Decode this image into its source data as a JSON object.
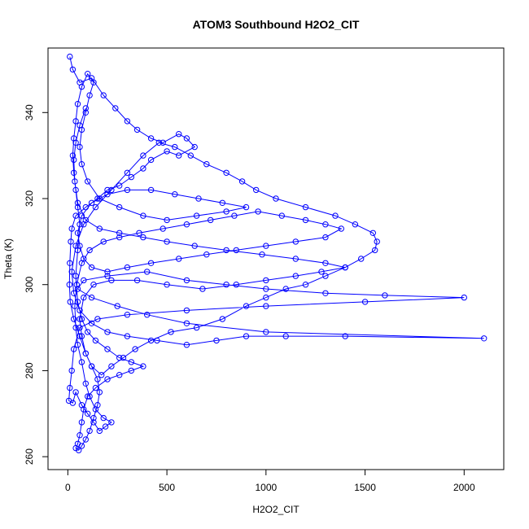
{
  "chart_data": {
    "type": "scatter",
    "title": "ATOM3 Southbound H2O2_CIT",
    "xlabel": "H2O2_CIT",
    "ylabel": "Theta (K)",
    "xlim": [
      -100,
      2200
    ],
    "ylim": [
      257,
      355
    ],
    "x_ticks": [
      0,
      500,
      1000,
      1500,
      2000
    ],
    "y_ticks": [
      260,
      280,
      300,
      320,
      340
    ],
    "grid": false,
    "legend": "none",
    "point_style": "open circles connected by lines",
    "series_color": "#0000ff",
    "series": [
      {
        "points": [
          [
            10,
            353
          ],
          [
            25,
            350
          ],
          [
            60,
            347
          ],
          [
            120,
            348
          ],
          [
            180,
            344
          ],
          [
            240,
            341
          ],
          [
            300,
            338
          ],
          [
            350,
            336
          ],
          [
            420,
            334
          ],
          [
            480,
            333
          ],
          [
            560,
            335
          ],
          [
            600,
            334
          ],
          [
            640,
            332
          ],
          [
            560,
            330
          ],
          [
            500,
            331
          ],
          [
            420,
            329
          ],
          [
            380,
            327
          ],
          [
            320,
            325
          ],
          [
            260,
            323
          ],
          [
            200,
            322
          ],
          [
            150,
            320
          ],
          [
            90,
            318
          ],
          [
            40,
            316
          ],
          [
            20,
            313
          ],
          [
            15,
            310
          ],
          [
            10,
            305
          ],
          [
            8,
            300
          ],
          [
            12,
            296
          ],
          [
            30,
            292
          ],
          [
            60,
            288
          ],
          [
            90,
            284
          ],
          [
            120,
            281
          ],
          [
            170,
            279
          ],
          [
            220,
            281
          ],
          [
            280,
            283
          ],
          [
            340,
            285
          ],
          [
            420,
            287
          ],
          [
            520,
            289
          ],
          [
            650,
            290
          ],
          [
            780,
            292
          ],
          [
            900,
            295
          ],
          [
            1000,
            297
          ],
          [
            1100,
            299
          ],
          [
            1200,
            300
          ],
          [
            1300,
            302
          ],
          [
            1400,
            304
          ],
          [
            1480,
            306
          ],
          [
            1550,
            308
          ],
          [
            1560,
            310
          ],
          [
            1540,
            312
          ],
          [
            1450,
            314
          ],
          [
            1350,
            316
          ],
          [
            1200,
            318
          ],
          [
            1050,
            320
          ],
          [
            950,
            322
          ],
          [
            880,
            324
          ],
          [
            800,
            326
          ],
          [
            700,
            328
          ],
          [
            620,
            330
          ],
          [
            540,
            332
          ],
          [
            460,
            333
          ],
          [
            380,
            330
          ],
          [
            300,
            326
          ],
          [
            220,
            322
          ],
          [
            140,
            318
          ],
          [
            80,
            314
          ],
          [
            40,
            309
          ],
          [
            20,
            303
          ],
          [
            30,
            298
          ],
          [
            60,
            294
          ],
          [
            120,
            291
          ],
          [
            200,
            289
          ],
          [
            300,
            288
          ],
          [
            450,
            287
          ],
          [
            600,
            286
          ],
          [
            750,
            287
          ],
          [
            900,
            288
          ],
          [
            1100,
            288
          ],
          [
            1400,
            288
          ],
          [
            2100,
            287.5
          ],
          [
            1000,
            289
          ],
          [
            600,
            291
          ],
          [
            400,
            293
          ],
          [
            250,
            295
          ],
          [
            120,
            297
          ],
          [
            50,
            299
          ],
          [
            80,
            301
          ],
          [
            200,
            302
          ],
          [
            400,
            303
          ],
          [
            600,
            301
          ],
          [
            800,
            300
          ],
          [
            1000,
            299
          ],
          [
            1300,
            298
          ],
          [
            1600,
            297.5
          ],
          [
            2000,
            297
          ],
          [
            1500,
            296
          ],
          [
            1000,
            295
          ],
          [
            600,
            294
          ],
          [
            300,
            293
          ],
          [
            150,
            292
          ],
          [
            60,
            290
          ],
          [
            30,
            285
          ],
          [
            20,
            280
          ],
          [
            10,
            276
          ],
          [
            5,
            273
          ],
          [
            25,
            272.5
          ],
          [
            40,
            275
          ],
          [
            70,
            272
          ],
          [
            100,
            270
          ],
          [
            130,
            268
          ],
          [
            160,
            266
          ],
          [
            190,
            267
          ],
          [
            220,
            268
          ],
          [
            180,
            269
          ],
          [
            140,
            271
          ],
          [
            110,
            274
          ],
          [
            90,
            277
          ],
          [
            70,
            282
          ],
          [
            50,
            286
          ],
          [
            40,
            290
          ],
          [
            35,
            295
          ],
          [
            45,
            300
          ],
          [
            70,
            305
          ],
          [
            110,
            308
          ],
          [
            180,
            310
          ],
          [
            260,
            311
          ],
          [
            360,
            312
          ],
          [
            480,
            313
          ],
          [
            600,
            314
          ],
          [
            720,
            315
          ],
          [
            840,
            316
          ],
          [
            960,
            317
          ],
          [
            1080,
            316
          ],
          [
            1200,
            315
          ],
          [
            1300,
            314
          ],
          [
            1380,
            313
          ],
          [
            1300,
            311
          ],
          [
            1150,
            310
          ],
          [
            1000,
            309
          ],
          [
            850,
            308
          ],
          [
            700,
            307
          ],
          [
            560,
            306
          ],
          [
            420,
            305
          ],
          [
            300,
            304
          ],
          [
            200,
            303
          ],
          [
            120,
            304
          ],
          [
            80,
            306
          ],
          [
            60,
            309
          ],
          [
            50,
            312
          ],
          [
            70,
            316
          ],
          [
            120,
            319
          ],
          [
            200,
            321
          ],
          [
            300,
            322
          ],
          [
            420,
            322
          ],
          [
            540,
            321
          ],
          [
            660,
            320
          ],
          [
            780,
            319
          ],
          [
            900,
            318
          ],
          [
            800,
            317
          ],
          [
            650,
            316
          ],
          [
            500,
            315
          ],
          [
            380,
            316
          ],
          [
            260,
            318
          ],
          [
            160,
            320
          ],
          [
            100,
            324
          ],
          [
            70,
            328
          ],
          [
            60,
            332
          ],
          [
            70,
            336
          ],
          [
            90,
            340
          ],
          [
            110,
            344
          ],
          [
            130,
            347
          ],
          [
            100,
            349
          ],
          [
            70,
            346
          ],
          [
            50,
            342
          ],
          [
            40,
            338
          ],
          [
            30,
            334
          ],
          [
            25,
            330
          ],
          [
            30,
            326
          ],
          [
            40,
            322
          ],
          [
            50,
            318
          ],
          [
            60,
            314
          ],
          [
            50,
            308
          ],
          [
            40,
            302
          ],
          [
            50,
            296
          ],
          [
            70,
            292
          ],
          [
            100,
            289
          ],
          [
            140,
            287
          ],
          [
            200,
            285
          ],
          [
            260,
            283
          ],
          [
            320,
            282
          ],
          [
            380,
            281
          ],
          [
            320,
            280
          ],
          [
            260,
            279
          ],
          [
            200,
            278
          ],
          [
            140,
            276
          ],
          [
            100,
            274
          ],
          [
            80,
            271
          ],
          [
            70,
            268
          ],
          [
            60,
            265
          ],
          [
            50,
            263
          ],
          [
            40,
            262
          ],
          [
            55,
            261.5
          ],
          [
            70,
            262.5
          ],
          [
            90,
            264
          ],
          [
            110,
            266
          ],
          [
            130,
            269
          ],
          [
            150,
            272
          ],
          [
            160,
            275
          ],
          [
            150,
            278
          ],
          [
            120,
            281
          ],
          [
            90,
            284
          ],
          [
            70,
            288
          ],
          [
            60,
            292
          ],
          [
            80,
            297
          ],
          [
            130,
            300
          ],
          [
            220,
            301
          ],
          [
            350,
            301
          ],
          [
            500,
            300
          ],
          [
            680,
            299
          ],
          [
            850,
            300
          ],
          [
            1000,
            301
          ],
          [
            1150,
            302
          ],
          [
            1280,
            303
          ],
          [
            1400,
            304
          ],
          [
            1300,
            305
          ],
          [
            1150,
            306
          ],
          [
            980,
            307
          ],
          [
            800,
            308
          ],
          [
            640,
            309
          ],
          [
            500,
            310
          ],
          [
            380,
            311
          ],
          [
            260,
            312
          ],
          [
            160,
            313
          ],
          [
            90,
            315
          ],
          [
            50,
            319
          ],
          [
            35,
            324
          ],
          [
            30,
            329
          ],
          [
            40,
            333
          ],
          [
            60,
            337
          ],
          [
            90,
            341
          ]
        ]
      }
    ]
  }
}
